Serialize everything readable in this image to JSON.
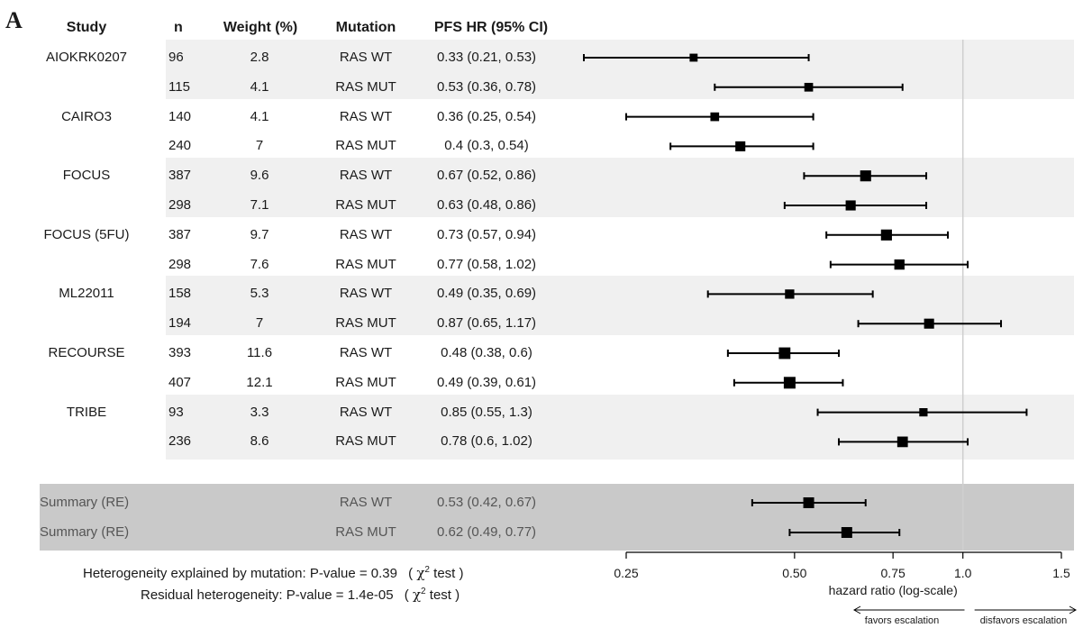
{
  "panel_label": "A",
  "columns": {
    "study": "Study",
    "n": "n",
    "weight": "Weight (%)",
    "mutation": "Mutation",
    "hr": "PFS HR (95% CI)"
  },
  "chart_data": {
    "type": "forest",
    "xlabel": "hazard ratio (log-scale)",
    "x_scale": "log",
    "x_ticks": [
      0.25,
      0.5,
      0.75,
      1.0,
      1.5
    ],
    "x_tick_labels": [
      "0.25",
      "0.50",
      "0.75",
      "1.0",
      "1.5"
    ],
    "reference_line": 1.0,
    "studies": [
      "AIOKRK0207",
      "CAIRO3",
      "FOCUS",
      "FOCUS (5FU)",
      "ML22011",
      "RECOURSE",
      "TRIBE"
    ],
    "rows": [
      {
        "study": "AIOKRK0207",
        "n": "96",
        "weight": "2.8",
        "mutation": "RAS WT",
        "hr_text": "0.33 (0.21, 0.53)",
        "hr": 0.33,
        "lo": 0.21,
        "hi": 0.53
      },
      {
        "study": "AIOKRK0207",
        "n": "115",
        "weight": "4.1",
        "mutation": "RAS MUT",
        "hr_text": "0.53 (0.36, 0.78)",
        "hr": 0.53,
        "lo": 0.36,
        "hi": 0.78
      },
      {
        "study": "CAIRO3",
        "n": "140",
        "weight": "4.1",
        "mutation": "RAS WT",
        "hr_text": "0.36 (0.25, 0.54)",
        "hr": 0.36,
        "lo": 0.25,
        "hi": 0.54
      },
      {
        "study": "CAIRO3",
        "n": "240",
        "weight": "7",
        "mutation": "RAS MUT",
        "hr_text": "0.4 (0.3, 0.54)",
        "hr": 0.4,
        "lo": 0.3,
        "hi": 0.54
      },
      {
        "study": "FOCUS",
        "n": "387",
        "weight": "9.6",
        "mutation": "RAS WT",
        "hr_text": "0.67 (0.52, 0.86)",
        "hr": 0.67,
        "lo": 0.52,
        "hi": 0.86
      },
      {
        "study": "FOCUS",
        "n": "298",
        "weight": "7.1",
        "mutation": "RAS MUT",
        "hr_text": "0.63 (0.48, 0.86)",
        "hr": 0.63,
        "lo": 0.48,
        "hi": 0.86
      },
      {
        "study": "FOCUS (5FU)",
        "n": "387",
        "weight": "9.7",
        "mutation": "RAS WT",
        "hr_text": "0.73 (0.57, 0.94)",
        "hr": 0.73,
        "lo": 0.57,
        "hi": 0.94
      },
      {
        "study": "FOCUS (5FU)",
        "n": "298",
        "weight": "7.6",
        "mutation": "RAS MUT",
        "hr_text": "0.77 (0.58, 1.02)",
        "hr": 0.77,
        "lo": 0.58,
        "hi": 1.02
      },
      {
        "study": "ML22011",
        "n": "158",
        "weight": "5.3",
        "mutation": "RAS WT",
        "hr_text": "0.49 (0.35, 0.69)",
        "hr": 0.49,
        "lo": 0.35,
        "hi": 0.69
      },
      {
        "study": "ML22011",
        "n": "194",
        "weight": "7",
        "mutation": "RAS MUT",
        "hr_text": "0.87 (0.65, 1.17)",
        "hr": 0.87,
        "lo": 0.65,
        "hi": 1.17
      },
      {
        "study": "RECOURSE",
        "n": "393",
        "weight": "11.6",
        "mutation": "RAS WT",
        "hr_text": "0.48 (0.38, 0.6)",
        "hr": 0.48,
        "lo": 0.38,
        "hi": 0.6
      },
      {
        "study": "RECOURSE",
        "n": "407",
        "weight": "12.1",
        "mutation": "RAS MUT",
        "hr_text": "0.49 (0.39, 0.61)",
        "hr": 0.49,
        "lo": 0.39,
        "hi": 0.61
      },
      {
        "study": "TRIBE",
        "n": "93",
        "weight": "3.3",
        "mutation": "RAS WT",
        "hr_text": "0.85 (0.55, 1.3)",
        "hr": 0.85,
        "lo": 0.55,
        "hi": 1.3
      },
      {
        "study": "TRIBE",
        "n": "236",
        "weight": "8.6",
        "mutation": "RAS MUT",
        "hr_text": "0.78 (0.6, 1.02)",
        "hr": 0.78,
        "lo": 0.6,
        "hi": 1.02
      }
    ],
    "summary": [
      {
        "label": "Summary (RE)",
        "mutation": "RAS WT",
        "hr_text": "0.53 (0.42, 0.67)",
        "hr": 0.53,
        "lo": 0.42,
        "hi": 0.67
      },
      {
        "label": "Summary (RE)",
        "mutation": "RAS MUT",
        "hr_text": "0.62 (0.49, 0.77)",
        "hr": 0.62,
        "lo": 0.49,
        "hi": 0.77
      }
    ],
    "arrows": {
      "left": "favors escalation",
      "right": "disfavors escalation"
    }
  },
  "footnotes": {
    "heterogeneity_mutation": "Heterogeneity explained by mutation: P-value = 0.39",
    "residual": "Residual heterogeneity: P-value = 1.4e-05",
    "chi": "χ",
    "chi_exp": "2",
    "test": "test",
    "open_paren": "(",
    "close_paren": ")"
  }
}
